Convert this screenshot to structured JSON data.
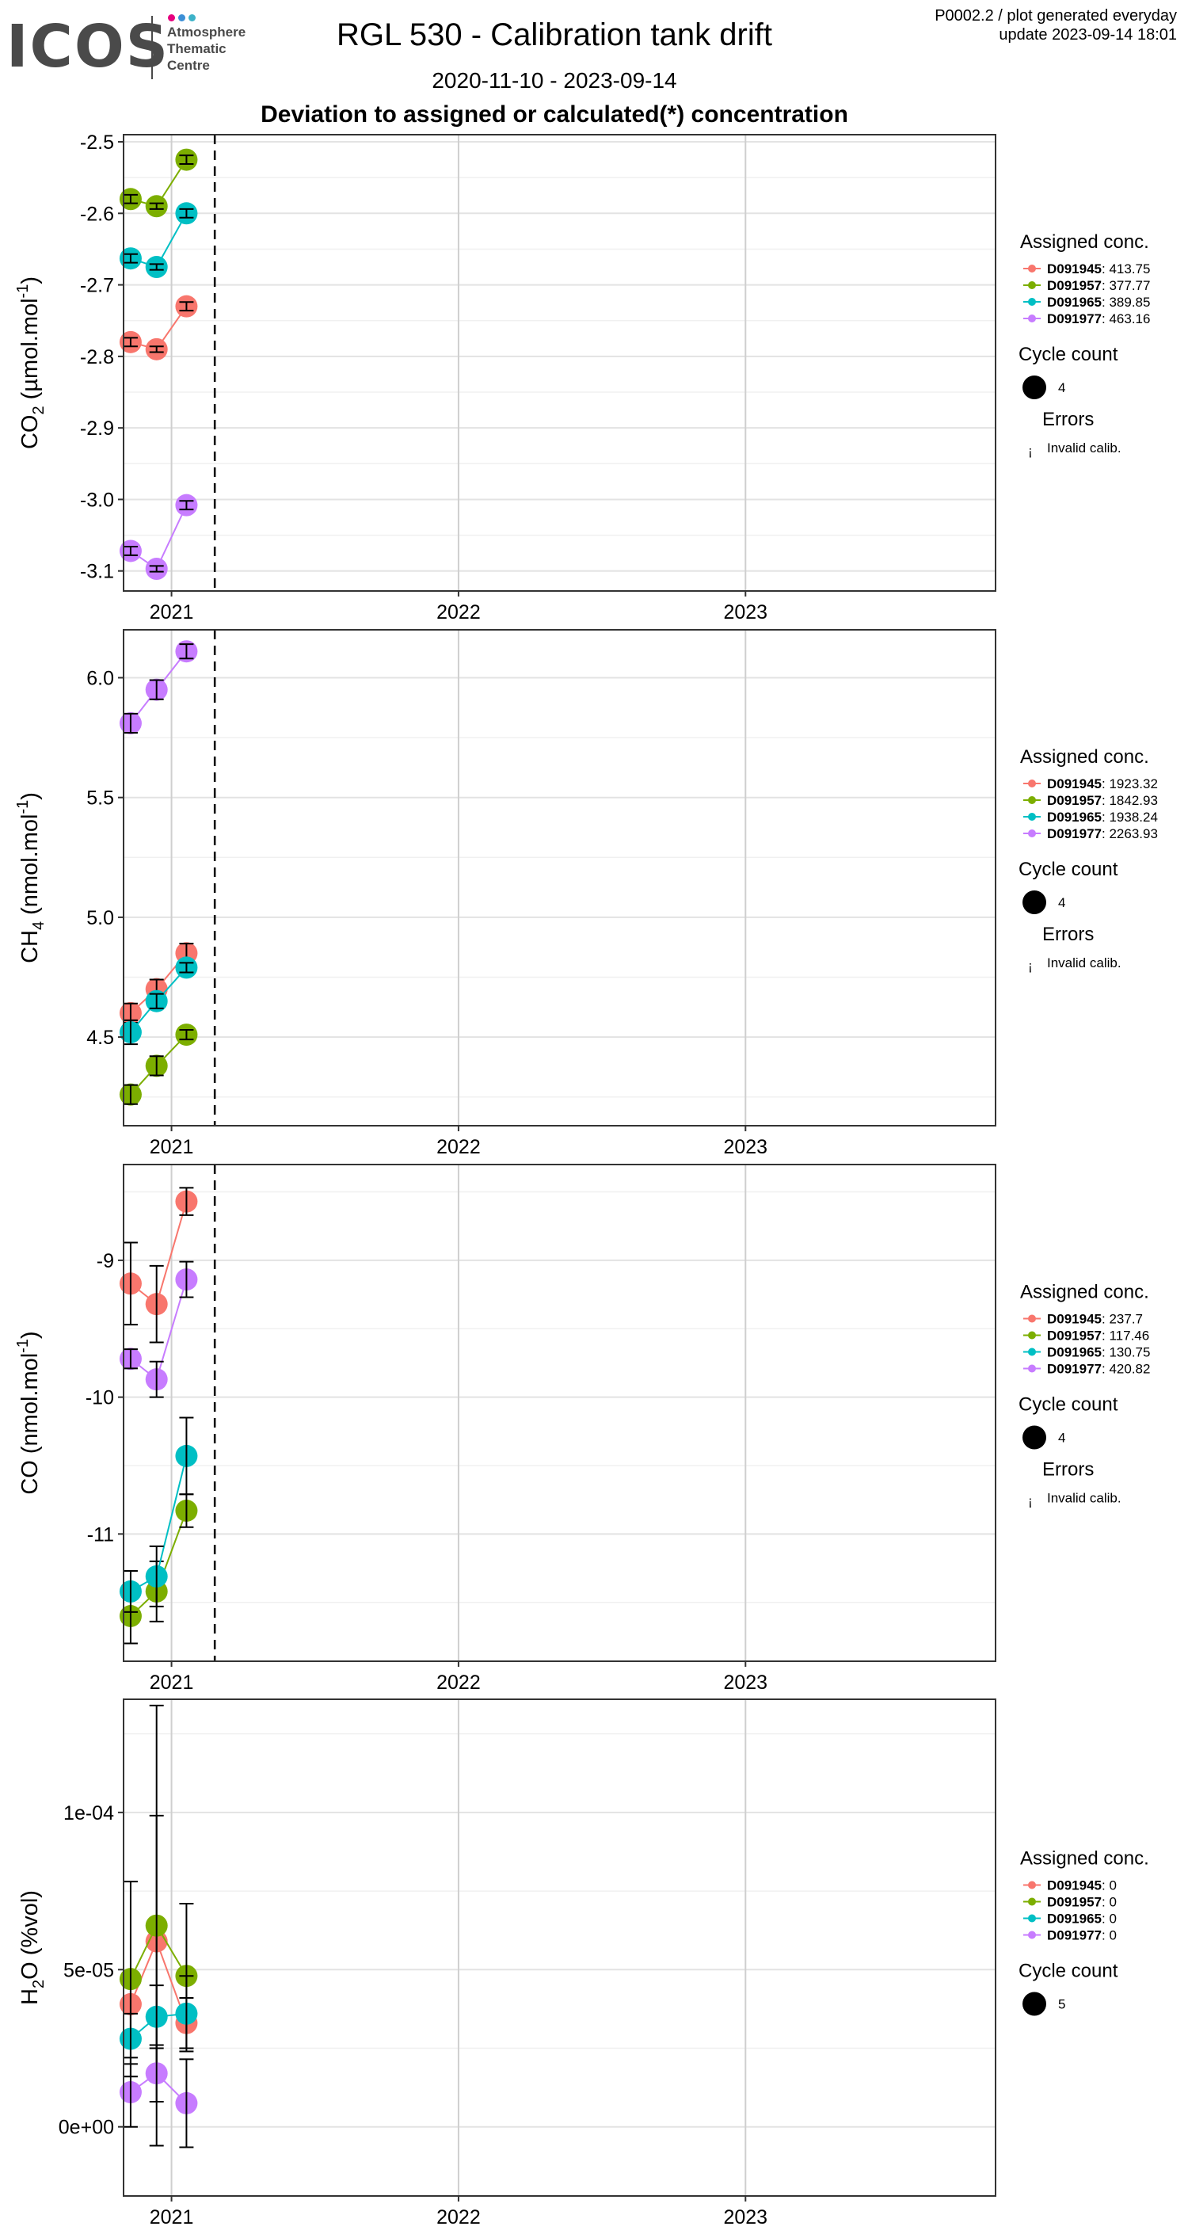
{
  "header": {
    "logo": {
      "word": "ICOS",
      "line1": "Atmosphere",
      "line2": "Thematic",
      "line3": "Centre",
      "dot_colors": [
        "#e6007e",
        "#3c8fd6",
        "#3cb2c8"
      ]
    },
    "title": "RGL 530 - Calibration tank drift",
    "date_range": "2020-11-10 - 2023-09-14",
    "subtitle": "Deviation to assigned or calculated(*) concentration",
    "code_line": "P0002.2 / plot generated everyday",
    "update_line": "update  2023-09-14 18:01"
  },
  "colors": {
    "D091945": "#F8766D",
    "D091957": "#7CAE00",
    "D091965": "#00BFC4",
    "D091977": "#C77CFF"
  },
  "legend_common": {
    "assigned_title": "Assigned conc.",
    "cycle_title": "Cycle count",
    "errors_title": "Errors",
    "errors_symbol": "¡",
    "invalid_label": "Invalid calib."
  },
  "chart_data": [
    {
      "type": "scatter",
      "name": "co2",
      "ylabel_main": "CO",
      "ylabel_sub": "2",
      "ylabel_unit": " (µmol.mol",
      "ylabel_sup": "-1",
      "ylabel_end": ")",
      "x_ticks": [
        "2021",
        "2022",
        "2023"
      ],
      "x_tick_dates": [
        "2021-01-01",
        "2022-01-01",
        "2023-01-01"
      ],
      "x_range": [
        "2020-11-01",
        "2023-11-15"
      ],
      "dashed_line_date": "2021-02-25",
      "y_ticks": [
        -2.5,
        -2.6,
        -2.7,
        -2.8,
        -2.9,
        -3.0,
        -3.1
      ],
      "y_tick_labels": [
        "-2.5",
        "-2.6",
        "-2.7",
        "-2.8",
        "-2.9",
        "-3.0",
        "-3.1"
      ],
      "ylim": [
        -3.128,
        -2.49
      ],
      "grid": true,
      "legend_position": "right",
      "cycle_count": "4",
      "show_errors": true,
      "series": [
        {
          "name": "D091945",
          "assigned": "413.75",
          "points": [
            {
              "x": "2020-11-10",
              "y": -2.78,
              "err": 0.006
            },
            {
              "x": "2020-12-13",
              "y": -2.79,
              "err": 0.004
            },
            {
              "x": "2021-01-20",
              "y": -2.73,
              "err": 0.006
            }
          ]
        },
        {
          "name": "D091957",
          "assigned": "377.77",
          "points": [
            {
              "x": "2020-11-10",
              "y": -2.58,
              "err": 0.006
            },
            {
              "x": "2020-12-13",
              "y": -2.59,
              "err": 0.004
            },
            {
              "x": "2021-01-20",
              "y": -2.525,
              "err": 0.006
            }
          ]
        },
        {
          "name": "D091965",
          "assigned": "389.85",
          "points": [
            {
              "x": "2020-11-10",
              "y": -2.663,
              "err": 0.006
            },
            {
              "x": "2020-12-13",
              "y": -2.675,
              "err": 0.004
            },
            {
              "x": "2021-01-20",
              "y": -2.6,
              "err": 0.006
            }
          ]
        },
        {
          "name": "D091977",
          "assigned": "463.16",
          "points": [
            {
              "x": "2020-11-10",
              "y": -3.072,
              "err": 0.006
            },
            {
              "x": "2020-12-13",
              "y": -3.097,
              "err": 0.004
            },
            {
              "x": "2021-01-20",
              "y": -3.008,
              "err": 0.006
            }
          ]
        }
      ]
    },
    {
      "type": "scatter",
      "name": "ch4",
      "ylabel_main": "CH",
      "ylabel_sub": "4",
      "ylabel_unit": " (nmol.mol",
      "ylabel_sup": "-1",
      "ylabel_end": ")",
      "x_ticks": [
        "2021",
        "2022",
        "2023"
      ],
      "x_tick_dates": [
        "2021-01-01",
        "2022-01-01",
        "2023-01-01"
      ],
      "x_range": [
        "2020-11-01",
        "2023-11-15"
      ],
      "dashed_line_date": "2021-02-25",
      "y_ticks": [
        4.5,
        5.0,
        5.5,
        6.0
      ],
      "y_tick_labels": [
        "4.5",
        "5.0",
        "5.5",
        "6.0"
      ],
      "ylim": [
        4.13,
        6.2
      ],
      "grid": true,
      "legend_position": "right",
      "cycle_count": "4",
      "show_errors": true,
      "series": [
        {
          "name": "D091945",
          "assigned": "1923.32",
          "points": [
            {
              "x": "2020-11-10",
              "y": 4.6,
              "err": 0.04
            },
            {
              "x": "2020-12-13",
              "y": 4.7,
              "err": 0.04
            },
            {
              "x": "2021-01-20",
              "y": 4.85,
              "err": 0.04
            }
          ]
        },
        {
          "name": "D091957",
          "assigned": "1842.93",
          "points": [
            {
              "x": "2020-11-10",
              "y": 4.26,
              "err": 0.04
            },
            {
              "x": "2020-12-13",
              "y": 4.38,
              "err": 0.04
            },
            {
              "x": "2021-01-20",
              "y": 4.51,
              "err": 0.02
            }
          ]
        },
        {
          "name": "D091965",
          "assigned": "1938.24",
          "points": [
            {
              "x": "2020-11-10",
              "y": 4.52,
              "err": 0.05
            },
            {
              "x": "2020-12-13",
              "y": 4.65,
              "err": 0.03
            },
            {
              "x": "2021-01-20",
              "y": 4.79,
              "err": 0.02
            }
          ]
        },
        {
          "name": "D091977",
          "assigned": "2263.93",
          "points": [
            {
              "x": "2020-11-10",
              "y": 5.81,
              "err": 0.04
            },
            {
              "x": "2020-12-13",
              "y": 5.95,
              "err": 0.04
            },
            {
              "x": "2021-01-20",
              "y": 6.11,
              "err": 0.03
            }
          ]
        }
      ]
    },
    {
      "type": "scatter",
      "name": "co",
      "ylabel_main": "CO",
      "ylabel_sub": "",
      "ylabel_unit": " (nmol.mol",
      "ylabel_sup": "-1",
      "ylabel_end": ")",
      "x_ticks": [
        "2021",
        "2022",
        "2023"
      ],
      "x_tick_dates": [
        "2021-01-01",
        "2022-01-01",
        "2023-01-01"
      ],
      "x_range": [
        "2020-11-01",
        "2023-11-15"
      ],
      "dashed_line_date": "2021-02-25",
      "y_ticks": [
        -9,
        -10,
        -11
      ],
      "y_tick_labels": [
        "-9",
        "-10",
        "-11"
      ],
      "ylim": [
        -11.93,
        -8.3
      ],
      "grid": true,
      "legend_position": "right",
      "cycle_count": "4",
      "show_errors": true,
      "series": [
        {
          "name": "D091945",
          "assigned": "237.7",
          "points": [
            {
              "x": "2020-11-10",
              "y": -9.17,
              "err": 0.3
            },
            {
              "x": "2020-12-13",
              "y": -9.32,
              "err": 0.28
            },
            {
              "x": "2021-01-20",
              "y": -8.57,
              "err": 0.1
            }
          ]
        },
        {
          "name": "D091957",
          "assigned": "117.46",
          "points": [
            {
              "x": "2020-11-10",
              "y": -11.6,
              "err": 0.2
            },
            {
              "x": "2020-12-13",
              "y": -11.42,
              "err": 0.22
            },
            {
              "x": "2021-01-20",
              "y": -10.83,
              "err": 0.12
            }
          ]
        },
        {
          "name": "D091965",
          "assigned": "130.75",
          "points": [
            {
              "x": "2020-11-10",
              "y": -11.42,
              "err": 0.15
            },
            {
              "x": "2020-12-13",
              "y": -11.31,
              "err": 0.22
            },
            {
              "x": "2021-01-20",
              "y": -10.43,
              "err": 0.28
            }
          ]
        },
        {
          "name": "D091977",
          "assigned": "420.82",
          "points": [
            {
              "x": "2020-11-10",
              "y": -9.72,
              "err": 0.07
            },
            {
              "x": "2020-12-13",
              "y": -9.87,
              "err": 0.13
            },
            {
              "x": "2021-01-20",
              "y": -9.14,
              "err": 0.13
            }
          ]
        }
      ]
    },
    {
      "type": "scatter",
      "name": "h2o",
      "ylabel_main": "H",
      "ylabel_sub": "2",
      "ylabel_unit": "O (%vol)",
      "ylabel_sup": "",
      "ylabel_end": "",
      "x_ticks": [
        "2021",
        "2022",
        "2023"
      ],
      "x_tick_dates": [
        "2021-01-01",
        "2022-01-01",
        "2023-01-01"
      ],
      "x_range": [
        "2020-11-01",
        "2023-11-15"
      ],
      "dashed_line_date": "",
      "y_ticks": [
        0,
        5e-05,
        0.0001
      ],
      "y_tick_labels": [
        "0e+00",
        "5e-05",
        "1e-04"
      ],
      "ylim": [
        -2.2e-05,
        0.000136
      ],
      "grid": true,
      "legend_position": "right",
      "cycle_count": "5",
      "show_errors": false,
      "series": [
        {
          "name": "D091945",
          "assigned": "0",
          "points": [
            {
              "x": "2020-11-10",
              "y": 3.9e-05,
              "err": 1e-05
            },
            {
              "x": "2020-12-13",
              "y": 5.9e-05,
              "err": 4e-05
            },
            {
              "x": "2021-01-20",
              "y": 3.3e-05,
              "err": 8e-06
            }
          ]
        },
        {
          "name": "D091957",
          "assigned": "0",
          "points": [
            {
              "x": "2020-11-10",
              "y": 4.7e-05,
              "err": 3.1e-05
            },
            {
              "x": "2020-12-13",
              "y": 6.4e-05,
              "err": 7e-05
            },
            {
              "x": "2021-01-20",
              "y": 4.8e-05,
              "err": 2.3e-05
            }
          ]
        },
        {
          "name": "D091965",
          "assigned": "0",
          "points": [
            {
              "x": "2020-11-10",
              "y": 2.8e-05,
              "err": 8e-06
            },
            {
              "x": "2020-12-13",
              "y": 3.5e-05,
              "err": 1e-05
            },
            {
              "x": "2021-01-20",
              "y": 3.6e-05,
              "err": 1.2e-05
            }
          ]
        },
        {
          "name": "D091977",
          "assigned": "0",
          "points": [
            {
              "x": "2020-11-10",
              "y": 1.1e-05,
              "err": 1.1e-05
            },
            {
              "x": "2020-12-13",
              "y": 1.7e-05,
              "err": 9e-06
            },
            {
              "x": "2021-01-20",
              "y": 7.5e-06,
              "err": 1.4e-05
            }
          ]
        }
      ]
    }
  ]
}
